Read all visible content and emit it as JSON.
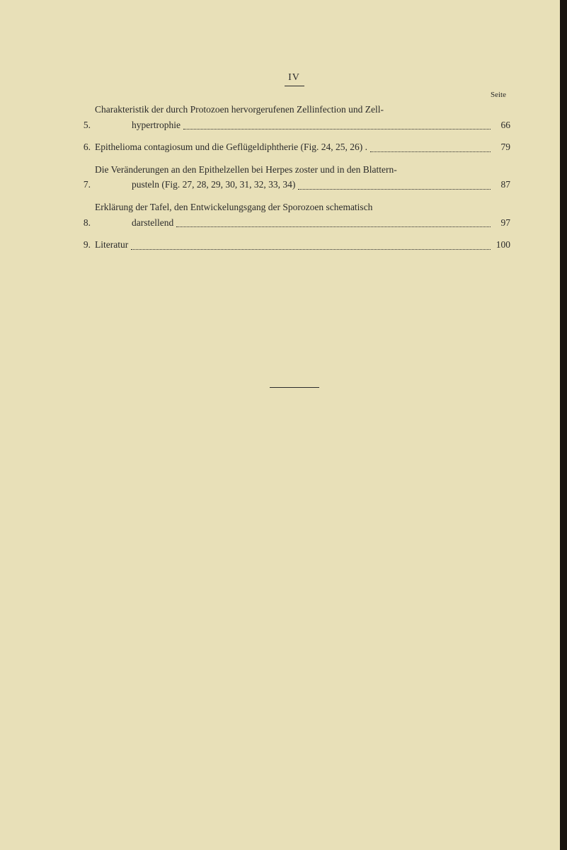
{
  "page": {
    "number": "IV",
    "seite_label": "Seite",
    "background_color": "#e8e0b8",
    "text_color": "#2a2a2a",
    "font_family": "Times New Roman",
    "base_fontsize": 13.5
  },
  "toc": {
    "items": [
      {
        "num": "5.",
        "line1": "Charakteristik der durch Protozoen hervorgerufenen Zellinfection und Zell-",
        "line2": "hypertrophie",
        "page": "66",
        "multiline": true
      },
      {
        "num": "6.",
        "line1": "Epithelioma contagiosum und die Geflügeldiphtherie (Fig. 24, 25, 26) .",
        "page": "79",
        "multiline": false
      },
      {
        "num": "7.",
        "line1": "Die Veränderungen an den Epithelzellen bei Herpes zoster und in den Blattern-",
        "line2": "pusteln (Fig. 27, 28, 29, 30, 31, 32, 33, 34)",
        "page": "87",
        "multiline": true
      },
      {
        "num": "8.",
        "line1": "Erklärung der Tafel, den Entwickelungsgang der Sporozoen schematisch",
        "line2": "darstellend",
        "page": "97",
        "multiline": true
      },
      {
        "num": "9.",
        "line1": "Literatur",
        "page": "100",
        "multiline": false
      }
    ]
  }
}
